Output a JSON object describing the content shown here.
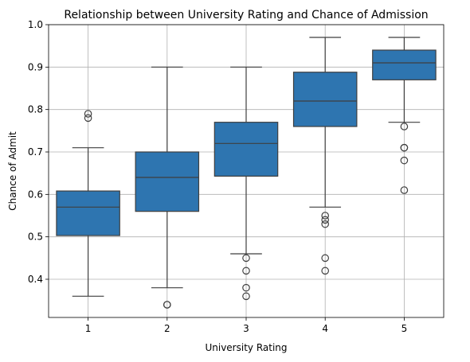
{
  "chart_data": {
    "type": "box",
    "title": "Relationship between University Rating and Chance of Admission",
    "xlabel": "University Rating",
    "ylabel": "Chance of Admit",
    "categories": [
      "1",
      "2",
      "3",
      "4",
      "5"
    ],
    "ylim": [
      0.31,
      1.0
    ],
    "yticks": [
      0.4,
      0.5,
      0.6,
      0.7,
      0.8,
      0.9,
      1.0
    ],
    "ytick_labels": [
      "0.4",
      "0.5",
      "0.6",
      "0.7",
      "0.8",
      "0.9",
      "1.0"
    ],
    "grid": true,
    "box_color": "#2e75b0",
    "line_color": "#3f3f3f",
    "boxes": [
      {
        "category": "1",
        "whisker_low": 0.36,
        "q1": 0.503,
        "median": 0.57,
        "q3": 0.608,
        "whisker_high": 0.71,
        "fliers": [
          0.78,
          0.79
        ]
      },
      {
        "category": "2",
        "whisker_low": 0.38,
        "q1": 0.56,
        "median": 0.64,
        "q3": 0.7,
        "whisker_high": 0.9,
        "fliers": [
          0.34,
          0.34
        ]
      },
      {
        "category": "3",
        "whisker_low": 0.46,
        "q1": 0.643,
        "median": 0.72,
        "q3": 0.77,
        "whisker_high": 0.9,
        "fliers": [
          0.45,
          0.42,
          0.38,
          0.36
        ]
      },
      {
        "category": "4",
        "whisker_low": 0.57,
        "q1": 0.76,
        "median": 0.82,
        "q3": 0.888,
        "whisker_high": 0.97,
        "fliers": [
          0.55,
          0.54,
          0.53,
          0.45,
          0.42
        ]
      },
      {
        "category": "5",
        "whisker_low": 0.77,
        "q1": 0.87,
        "median": 0.91,
        "q3": 0.94,
        "whisker_high": 0.97,
        "fliers": [
          0.76,
          0.71,
          0.71,
          0.68,
          0.61
        ]
      }
    ]
  }
}
